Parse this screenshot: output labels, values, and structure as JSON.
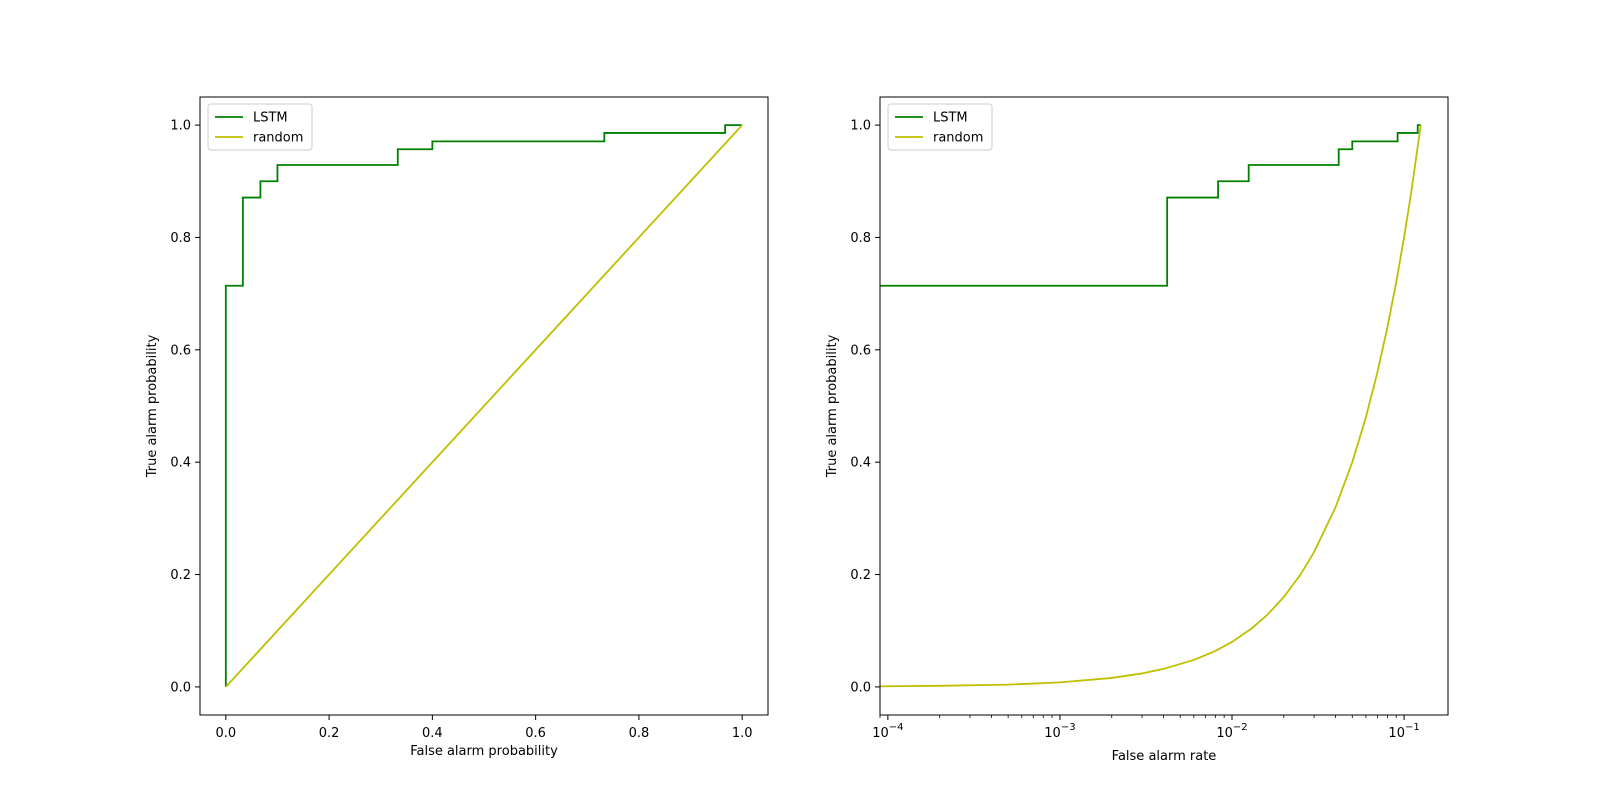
{
  "chart_data": [
    {
      "type": "line",
      "xlabel": "False alarm probability",
      "ylabel": "True alarm probability",
      "xlim": [
        -0.05,
        1.05
      ],
      "ylim": [
        -0.05,
        1.05
      ],
      "xscale": "linear",
      "xticks": [
        0.0,
        0.2,
        0.4,
        0.6,
        0.8,
        1.0
      ],
      "xtick_labels": [
        "0.0",
        "0.2",
        "0.4",
        "0.6",
        "0.8",
        "1.0"
      ],
      "yticks": [
        0.0,
        0.2,
        0.4,
        0.6,
        0.8,
        1.0
      ],
      "ytick_labels": [
        "0.0",
        "0.2",
        "0.4",
        "0.6",
        "0.8",
        "1.0"
      ],
      "legend_position": "top-left",
      "grid": false,
      "series": [
        {
          "name": "LSTM",
          "color": "#008000",
          "style": "step",
          "x": [
            0,
            0,
            0.033,
            0.033,
            0.067,
            0.067,
            0.1,
            0.1,
            0.333,
            0.333,
            0.4,
            0.4,
            0.733,
            0.733,
            0.967,
            0.967,
            1.0
          ],
          "y": [
            0,
            0.714,
            0.714,
            0.871,
            0.871,
            0.9,
            0.9,
            0.929,
            0.929,
            0.957,
            0.957,
            0.971,
            0.971,
            0.986,
            0.986,
            1.0,
            1.0
          ]
        },
        {
          "name": "random",
          "color": "#bfbf00",
          "style": "line",
          "x": [
            0,
            1
          ],
          "y": [
            0,
            1
          ]
        }
      ]
    },
    {
      "type": "line",
      "xlabel": "False alarm rate",
      "ylabel": "True alarm probability",
      "xlim": [
        9e-05,
        0.18
      ],
      "ylim": [
        -0.05,
        1.05
      ],
      "xscale": "log",
      "xticks": [
        0.0001,
        0.001,
        0.01,
        0.1
      ],
      "xtick_labels": [
        {
          "base": "10",
          "exp": "−4"
        },
        {
          "base": "10",
          "exp": "−3"
        },
        {
          "base": "10",
          "exp": "−2"
        },
        {
          "base": "10",
          "exp": "−1"
        }
      ],
      "yticks": [
        0.0,
        0.2,
        0.4,
        0.6,
        0.8,
        1.0
      ],
      "ytick_labels": [
        "0.0",
        "0.2",
        "0.4",
        "0.6",
        "0.8",
        "1.0"
      ],
      "legend_position": "top-left",
      "grid": false,
      "series": [
        {
          "name": "LSTM",
          "color": "#008000",
          "style": "step",
          "x": [
            9e-05,
            0.0042,
            0.0042,
            0.0083,
            0.0083,
            0.0125,
            0.0125,
            0.0417,
            0.0417,
            0.05,
            0.05,
            0.0917,
            0.0917,
            0.12,
            0.12,
            0.125
          ],
          "y": [
            0.714,
            0.714,
            0.871,
            0.871,
            0.9,
            0.9,
            0.929,
            0.929,
            0.957,
            0.957,
            0.971,
            0.971,
            0.986,
            0.986,
            1.0,
            1.0
          ]
        },
        {
          "name": "random",
          "color": "#bfbf00",
          "style": "line",
          "x": [
            9e-05,
            0.0002,
            0.0005,
            0.001,
            0.002,
            0.003,
            0.004,
            0.006,
            0.008,
            0.01,
            0.013,
            0.016,
            0.02,
            0.025,
            0.03,
            0.04,
            0.05,
            0.06,
            0.07,
            0.08,
            0.09,
            0.1,
            0.11,
            0.125
          ],
          "y": [
            0.001,
            0.002,
            0.004,
            0.008,
            0.016,
            0.024,
            0.032,
            0.048,
            0.064,
            0.08,
            0.104,
            0.128,
            0.16,
            0.2,
            0.24,
            0.32,
            0.4,
            0.48,
            0.56,
            0.64,
            0.72,
            0.8,
            0.88,
            1.0
          ]
        }
      ]
    }
  ]
}
